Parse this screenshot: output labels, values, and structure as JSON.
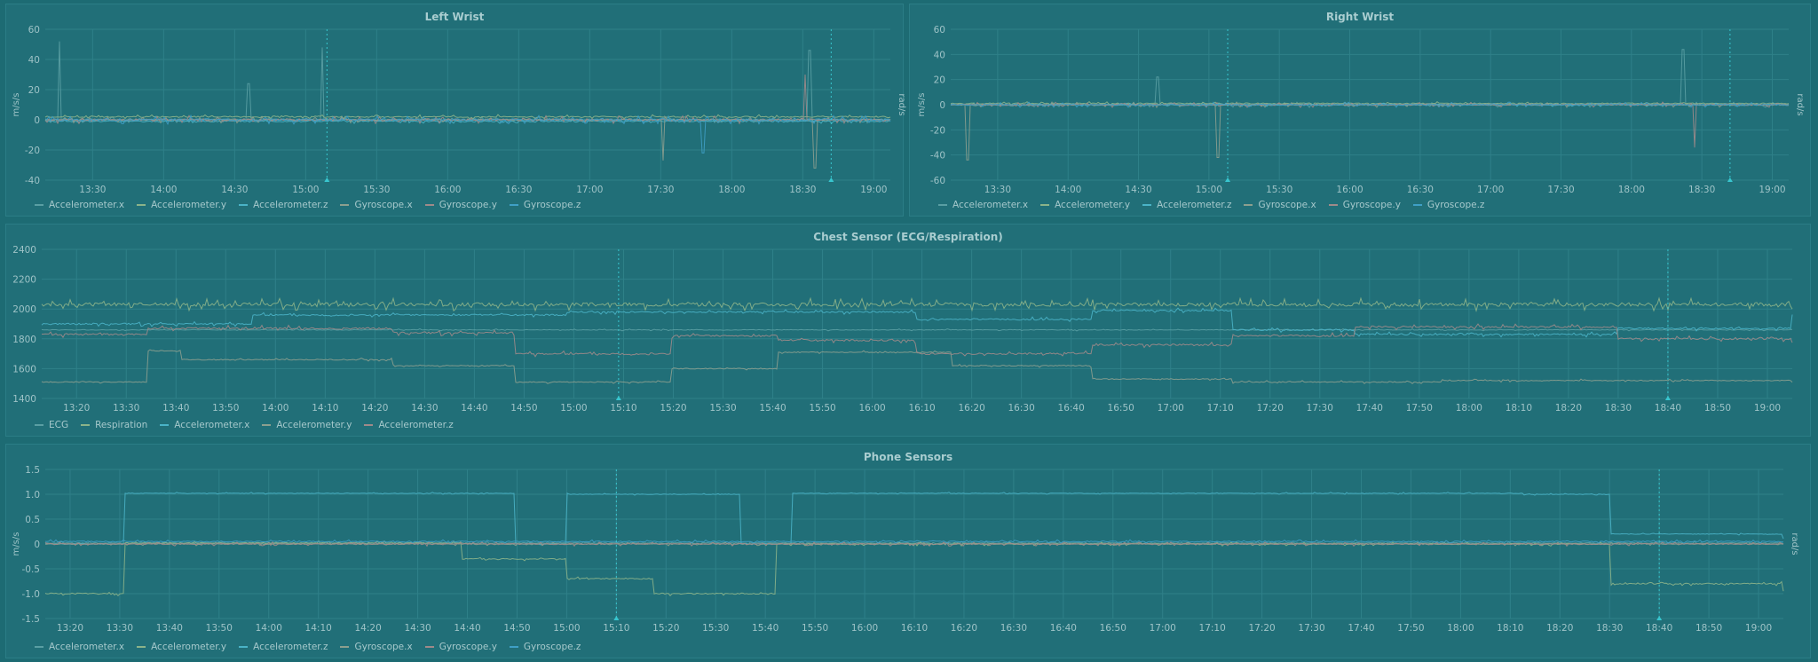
{
  "colors": {
    "background": "#1d6b73",
    "panel": "#216f78",
    "grid": "#2f8089",
    "palette": [
      "#5a9ea3",
      "#8bb38a",
      "#4ab3c7",
      "#8c9f8f",
      "#9f8a8a",
      "#3f9fc6"
    ],
    "marker": "#38c6cf"
  },
  "panels": [
    {
      "id": "left-wrist",
      "title": "Left Wrist",
      "y_unit_left": "m/s/s",
      "y_unit_right": "rad/s",
      "legend": [
        "Accelerometer.x",
        "Accelerometer.y",
        "Accelerometer.z",
        "Gyroscope.x",
        "Gyroscope.y",
        "Gyroscope.z"
      ]
    },
    {
      "id": "right-wrist",
      "title": "Right Wrist",
      "y_unit_left": "m/s/s",
      "y_unit_right": "rad/s",
      "legend": [
        "Accelerometer.x",
        "Accelerometer.y",
        "Accelerometer.z",
        "Gyroscope.x",
        "Gyroscope.y",
        "Gyroscope.z"
      ]
    },
    {
      "id": "chest-sensor",
      "title": "Chest Sensor (ECG/Respiration)",
      "y_unit_left": "",
      "y_unit_right": "",
      "legend": [
        "ECG",
        "Respiration",
        "Accelerometer.x",
        "Accelerometer.y",
        "Accelerometer.z"
      ]
    },
    {
      "id": "phone-sensors",
      "title": "Phone Sensors",
      "y_unit_left": "m/s/s",
      "y_unit_right": "rad/s",
      "legend": [
        "Accelerometer.x",
        "Accelerometer.y",
        "Accelerometer.z",
        "Gyroscope.x",
        "Gyroscope.y",
        "Gyroscope.z"
      ]
    }
  ],
  "chart_data": [
    {
      "type": "line",
      "title": "Left Wrist",
      "ylabel": "m/s/s",
      "y2label": "rad/s",
      "x_range": [
        "13:10",
        "19:07"
      ],
      "ylim": [
        -40,
        60
      ],
      "y_ticks": [
        "60",
        "40",
        "20",
        "0",
        "-20",
        "-40"
      ],
      "x_ticks": [
        "13:30",
        "14:00",
        "14:30",
        "15:00",
        "15:30",
        "16:00",
        "16:30",
        "17:00",
        "17:30",
        "18:00",
        "18:30",
        "19:00"
      ],
      "markers": [
        "15:09",
        "18:42"
      ],
      "series": [
        {
          "name": "Accelerometer.x",
          "baseline": 0,
          "noise": 3,
          "spikes": [
            [
              "13:16",
              52
            ],
            [
              "14:36",
              24
            ],
            [
              "15:07",
              48
            ],
            [
              "18:33",
              46
            ]
          ]
        },
        {
          "name": "Accelerometer.y",
          "baseline": 2,
          "noise": 2,
          "spikes": []
        },
        {
          "name": "Accelerometer.z",
          "baseline": -1,
          "noise": 2,
          "spikes": []
        },
        {
          "name": "Gyroscope.x",
          "baseline": 0,
          "noise": 3,
          "spikes": [
            [
              "17:31",
              -27
            ],
            [
              "18:35",
              -32
            ]
          ]
        },
        {
          "name": "Gyroscope.y",
          "baseline": 0,
          "noise": 4,
          "spikes": [
            [
              "18:31",
              30
            ]
          ]
        },
        {
          "name": "Gyroscope.z",
          "baseline": 0,
          "noise": 4,
          "spikes": [
            [
              "17:48",
              -22
            ]
          ]
        }
      ]
    },
    {
      "type": "line",
      "title": "Right Wrist",
      "ylabel": "m/s/s",
      "y2label": "rad/s",
      "x_range": [
        "13:10",
        "19:07"
      ],
      "ylim": [
        -60,
        60
      ],
      "y_ticks": [
        "60",
        "40",
        "20",
        "0",
        "-20",
        "-40",
        "-60"
      ],
      "x_ticks": [
        "13:30",
        "14:00",
        "14:30",
        "15:00",
        "15:30",
        "16:00",
        "16:30",
        "17:00",
        "17:30",
        "18:00",
        "18:30",
        "19:00"
      ],
      "markers": [
        "15:08",
        "18:42"
      ],
      "series": [
        {
          "name": "Accelerometer.x",
          "baseline": 0,
          "noise": 3,
          "spikes": [
            [
              "18:22",
              44
            ],
            [
              "14:38",
              22
            ]
          ]
        },
        {
          "name": "Accelerometer.y",
          "baseline": 1,
          "noise": 2,
          "spikes": []
        },
        {
          "name": "Accelerometer.z",
          "baseline": 0,
          "noise": 2,
          "spikes": []
        },
        {
          "name": "Gyroscope.x",
          "baseline": 0,
          "noise": 3,
          "spikes": [
            [
              "13:17",
              -44
            ],
            [
              "15:04",
              -42
            ]
          ]
        },
        {
          "name": "Gyroscope.y",
          "baseline": 0,
          "noise": 3,
          "spikes": [
            [
              "18:27",
              -34
            ]
          ]
        },
        {
          "name": "Gyroscope.z",
          "baseline": 0,
          "noise": 3,
          "spikes": []
        }
      ]
    },
    {
      "type": "line",
      "title": "Chest Sensor (ECG/Respiration)",
      "x_range": [
        "13:13",
        "19:05"
      ],
      "ylim": [
        1400,
        2400
      ],
      "y_ticks": [
        "2400",
        "2200",
        "2000",
        "1800",
        "1600",
        "1400"
      ],
      "x_ticks": [
        "13:20",
        "13:30",
        "13:40",
        "13:50",
        "14:00",
        "14:10",
        "14:20",
        "14:30",
        "14:40",
        "14:50",
        "15:00",
        "15:10",
        "15:20",
        "15:30",
        "15:40",
        "15:50",
        "16:00",
        "16:10",
        "16:20",
        "16:30",
        "16:40",
        "16:50",
        "17:00",
        "17:10",
        "17:20",
        "17:30",
        "17:40",
        "17:50",
        "18:00",
        "18:10",
        "18:20",
        "18:30",
        "18:40",
        "18:50",
        "19:00"
      ],
      "markers": [
        "15:09",
        "18:40"
      ],
      "series": [
        {
          "name": "ECG",
          "levels": [
            [
              0,
              1860
            ],
            [
              1,
              1860
            ]
          ],
          "noise": 10
        },
        {
          "name": "Respiration",
          "levels": [
            [
              0,
              2030
            ],
            [
              1,
              2020
            ]
          ],
          "noise": 60
        },
        {
          "name": "Accelerometer.x",
          "levels": [
            [
              0,
              1900
            ],
            [
              0.12,
              1960
            ],
            [
              0.3,
              1980
            ],
            [
              0.5,
              1930
            ],
            [
              0.6,
              1990
            ],
            [
              0.68,
              1860
            ],
            [
              0.75,
              1830
            ],
            [
              0.9,
              1870
            ],
            [
              1,
              1950
            ]
          ],
          "noise": 25
        },
        {
          "name": "Accelerometer.y",
          "levels": [
            [
              0,
              1510
            ],
            [
              0.06,
              1720
            ],
            [
              0.08,
              1660
            ],
            [
              0.2,
              1620
            ],
            [
              0.27,
              1510
            ],
            [
              0.36,
              1600
            ],
            [
              0.42,
              1710
            ],
            [
              0.52,
              1620
            ],
            [
              0.6,
              1530
            ],
            [
              0.68,
              1510
            ],
            [
              0.8,
              1520
            ],
            [
              1,
              1510
            ]
          ],
          "noise": 15
        },
        {
          "name": "Accelerometer.z",
          "levels": [
            [
              0,
              1830
            ],
            [
              0.06,
              1870
            ],
            [
              0.2,
              1840
            ],
            [
              0.27,
              1700
            ],
            [
              0.36,
              1820
            ],
            [
              0.42,
              1790
            ],
            [
              0.5,
              1700
            ],
            [
              0.6,
              1760
            ],
            [
              0.68,
              1820
            ],
            [
              0.75,
              1880
            ],
            [
              0.9,
              1800
            ],
            [
              1,
              1780
            ]
          ],
          "noise": 30
        }
      ]
    },
    {
      "type": "line",
      "title": "Phone Sensors",
      "ylabel": "m/s/s",
      "y2label": "rad/s",
      "x_range": [
        "13:15",
        "19:05"
      ],
      "ylim": [
        -1.5,
        1.5
      ],
      "y_ticks": [
        "1.5",
        "1.0",
        "0.5",
        "0",
        "-0.5",
        "-1.0",
        "-1.5"
      ],
      "x_ticks": [
        "13:20",
        "13:30",
        "13:40",
        "13:50",
        "14:00",
        "14:10",
        "14:20",
        "14:30",
        "14:40",
        "14:50",
        "15:00",
        "15:10",
        "15:20",
        "15:30",
        "15:40",
        "15:50",
        "16:00",
        "16:10",
        "16:20",
        "16:30",
        "16:40",
        "16:50",
        "17:00",
        "17:10",
        "17:20",
        "17:30",
        "17:40",
        "17:50",
        "18:00",
        "18:10",
        "18:20",
        "18:30",
        "18:40",
        "18:50",
        "19:00"
      ],
      "markers": [
        "15:10",
        "18:40"
      ],
      "series": [
        {
          "name": "Accelerometer.x",
          "levels": [
            [
              0,
              0.02
            ],
            [
              1,
              0.02
            ]
          ],
          "noise": 0.04
        },
        {
          "name": "Accelerometer.y",
          "levels": [
            [
              0,
              -1.0
            ],
            [
              0.045,
              0.02
            ],
            [
              0.24,
              -0.3
            ],
            [
              0.3,
              -0.7
            ],
            [
              0.35,
              -1.0
            ],
            [
              0.42,
              0.0
            ],
            [
              0.9,
              -0.8
            ],
            [
              1,
              -0.95
            ]
          ],
          "noise": 0.06
        },
        {
          "name": "Accelerometer.z",
          "levels": [
            [
              0,
              0.0
            ],
            [
              0.045,
              1.02
            ],
            [
              0.27,
              0.0
            ],
            [
              0.3,
              1.0
            ],
            [
              0.4,
              0.0
            ],
            [
              0.43,
              1.02
            ],
            [
              0.85,
              1.0
            ],
            [
              0.9,
              0.2
            ],
            [
              1,
              0.1
            ]
          ],
          "noise": 0.03
        },
        {
          "name": "Gyroscope.x",
          "levels": [
            [
              0,
              0.0
            ],
            [
              1,
              0.0
            ]
          ],
          "noise": 0.05
        },
        {
          "name": "Gyroscope.y",
          "levels": [
            [
              0,
              0.0
            ],
            [
              1,
              0.0
            ]
          ],
          "noise": 0.06
        },
        {
          "name": "Gyroscope.z",
          "levels": [
            [
              0,
              0.05
            ],
            [
              1,
              0.05
            ]
          ],
          "noise": 0.05
        }
      ]
    }
  ]
}
